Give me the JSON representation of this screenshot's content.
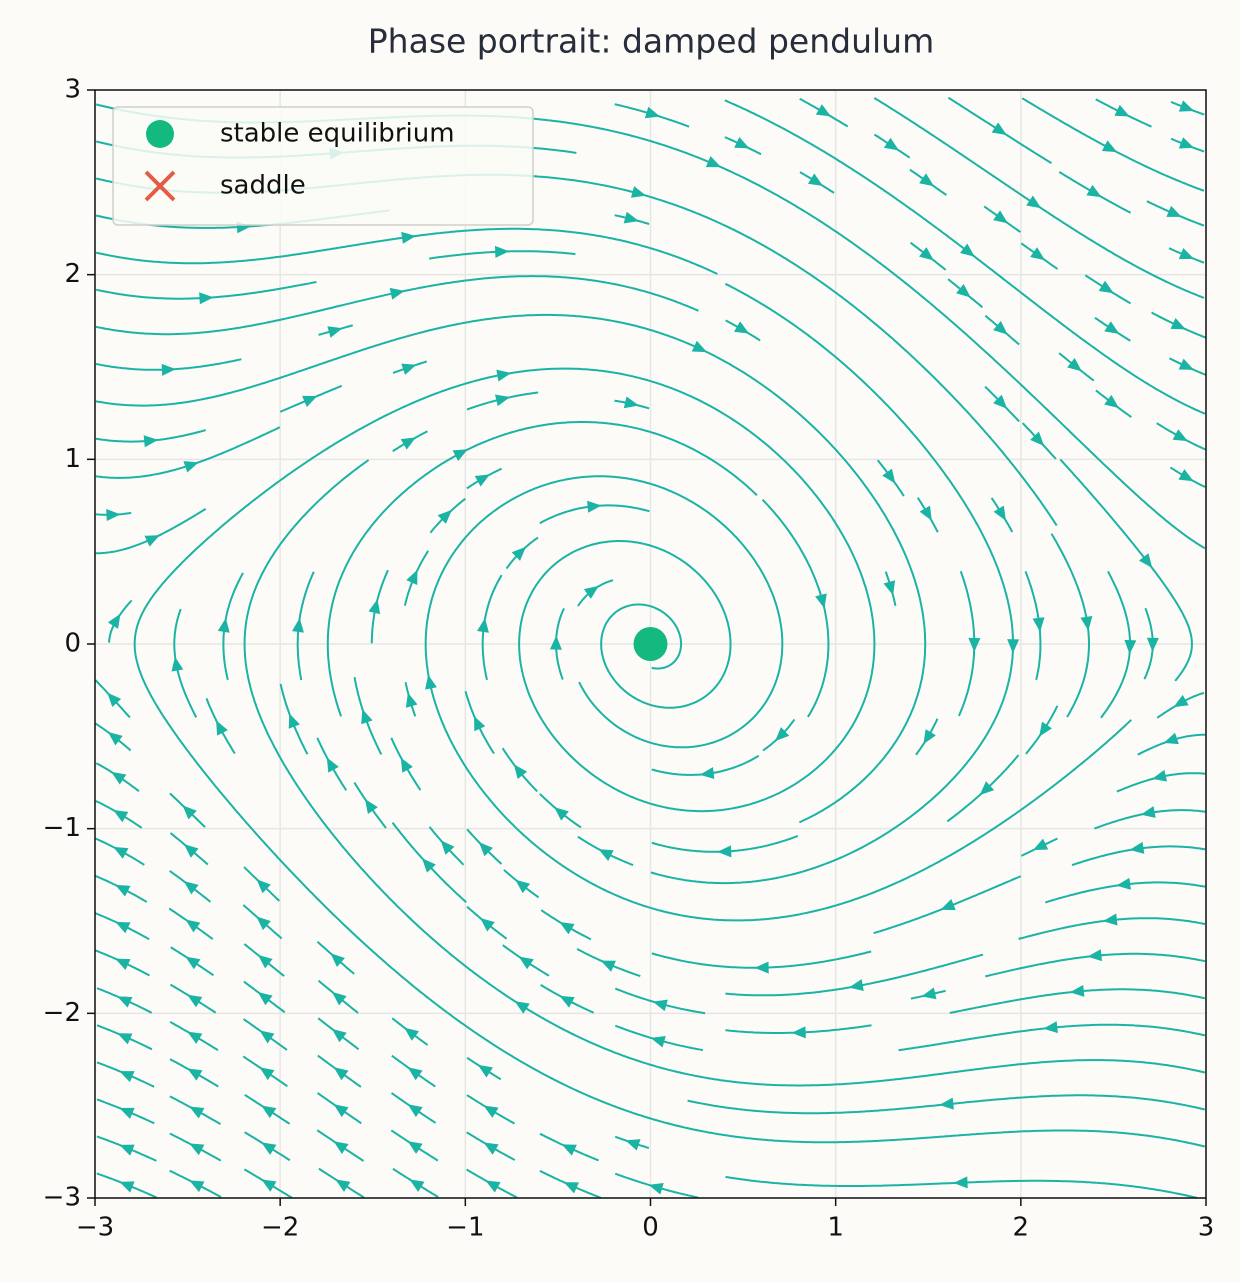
{
  "chart_data": {
    "type": "streamplot",
    "title": "Phase portrait: damped pendulum",
    "stream_color": "#1ab3a4",
    "series": [
      {
        "name": "stable equilibrium",
        "color": "#13b97f",
        "marker": "circle",
        "x": [
          0
        ],
        "y": [
          0
        ]
      },
      {
        "name": "saddle",
        "color": "#e45b48",
        "marker": "x",
        "x": [],
        "y": []
      }
    ],
    "xlim": [
      -3,
      3
    ],
    "ylim": [
      -3,
      3
    ],
    "xticks": [
      {
        "value": -3,
        "label": "−3"
      },
      {
        "value": -2,
        "label": "−2"
      },
      {
        "value": -1,
        "label": "−1"
      },
      0,
      1,
      2,
      3
    ],
    "yticks": [
      {
        "value": -3,
        "label": "−3"
      },
      {
        "value": -2,
        "label": "−2"
      },
      {
        "value": -1,
        "label": "−1"
      },
      0,
      1,
      2,
      3
    ],
    "grid": true,
    "legend": "upper left"
  }
}
